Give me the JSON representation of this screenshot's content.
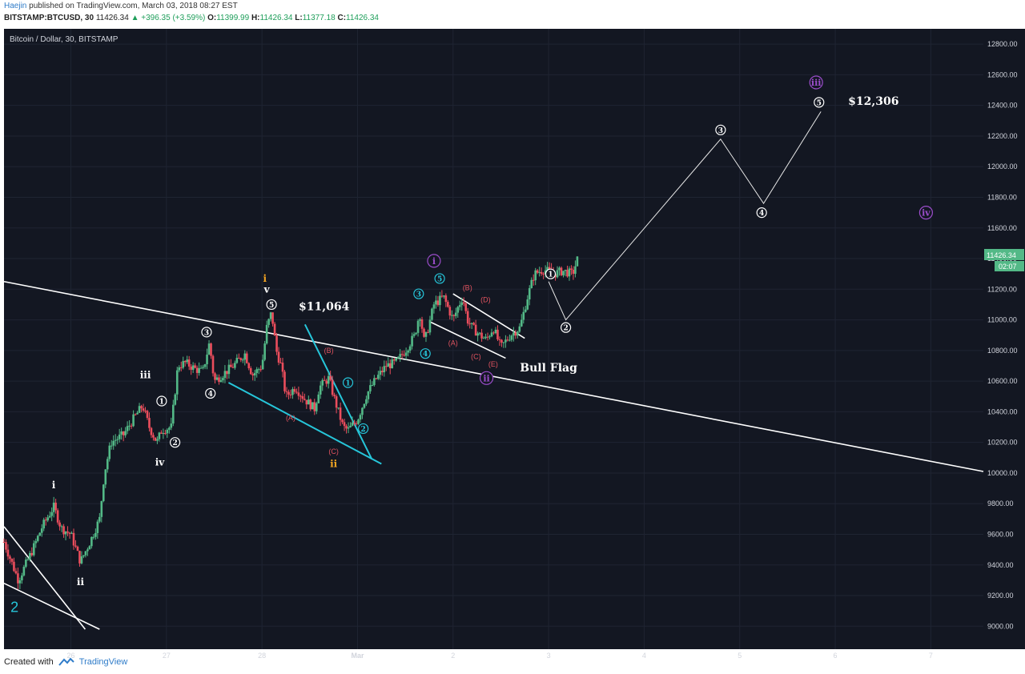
{
  "header": {
    "author": "Haejin",
    "published": "published on TradingView.com, March 03, 2018 08:27 EST",
    "symbol": "BITSTAMP:BTCUSD, 30",
    "last": "11426.34",
    "change": "▲ +396.35 (+3.59%)",
    "o_label": "O:",
    "o": "11399.99",
    "h_label": "H:",
    "h": "11426.34",
    "l_label": "L:",
    "l": "11377.18",
    "c_label": "C:",
    "c": "11426.34"
  },
  "footer": {
    "created_with": "Created with",
    "brand": "TradingView"
  },
  "colors": {
    "background": "#131722",
    "up": "#53b987",
    "down": "#eb4d5c",
    "cyan": "#26c6da",
    "purple": "#9c4dcc",
    "orange": "#f5a623",
    "white": "#ffffff"
  },
  "chart_data": {
    "type": "candlestick",
    "title": "Bitcoin / Dollar, 30, BITSTAMP",
    "ylim": [
      8850,
      12900
    ],
    "y_ticks": [
      "9000.00",
      "9200.00",
      "9400.00",
      "9600.00",
      "9800.00",
      "10000.00",
      "10200.00",
      "10400.00",
      "10600.00",
      "10800.00",
      "11000.00",
      "11200.00",
      "11400.00",
      "11600.00",
      "11800.00",
      "12000.00",
      "12200.00",
      "12400.00",
      "12600.00",
      "12800.00"
    ],
    "xlim": [
      25.3,
      35.55
    ],
    "x_ticks": [
      {
        "x": 26,
        "label": "26"
      },
      {
        "x": 27,
        "label": "27"
      },
      {
        "x": 28,
        "label": "28"
      },
      {
        "x": 29,
        "label": "Mar"
      },
      {
        "x": 30,
        "label": "2"
      },
      {
        "x": 31,
        "label": "3"
      },
      {
        "x": 32,
        "label": "4"
      },
      {
        "x": 33,
        "label": "5"
      },
      {
        "x": 34,
        "label": "6"
      },
      {
        "x": 35,
        "label": "7"
      }
    ],
    "last_price_label": "11426.34",
    "countdown_label": "02:07",
    "price_path": [
      [
        25.3,
        9550
      ],
      [
        25.45,
        9300
      ],
      [
        25.6,
        9500
      ],
      [
        25.7,
        9650
      ],
      [
        25.82,
        9780
      ],
      [
        25.9,
        9640
      ],
      [
        26.0,
        9600
      ],
      [
        26.1,
        9420
      ],
      [
        26.2,
        9550
      ],
      [
        26.3,
        9700
      ],
      [
        26.35,
        10000
      ],
      [
        26.42,
        10200
      ],
      [
        26.55,
        10250
      ],
      [
        26.65,
        10350
      ],
      [
        26.75,
        10440
      ],
      [
        26.82,
        10300
      ],
      [
        26.9,
        10200
      ],
      [
        26.95,
        10280
      ],
      [
        27.05,
        10300
      ],
      [
        27.12,
        10700
      ],
      [
        27.2,
        10720
      ],
      [
        27.3,
        10680
      ],
      [
        27.38,
        10660
      ],
      [
        27.45,
        10850
      ],
      [
        27.5,
        10600
      ],
      [
        27.6,
        10650
      ],
      [
        27.7,
        10700
      ],
      [
        27.82,
        10780
      ],
      [
        27.9,
        10640
      ],
      [
        28.0,
        10700
      ],
      [
        28.05,
        10950
      ],
      [
        28.1,
        11050
      ],
      [
        28.15,
        10800
      ],
      [
        28.2,
        10700
      ],
      [
        28.25,
        10500
      ],
      [
        28.35,
        10560
      ],
      [
        28.45,
        10480
      ],
      [
        28.55,
        10420
      ],
      [
        28.6,
        10560
      ],
      [
        28.7,
        10620
      ],
      [
        28.75,
        10500
      ],
      [
        28.8,
        10400
      ],
      [
        28.85,
        10300
      ],
      [
        28.9,
        10280
      ],
      [
        29.0,
        10350
      ],
      [
        29.1,
        10520
      ],
      [
        29.2,
        10620
      ],
      [
        29.3,
        10700
      ],
      [
        29.4,
        10720
      ],
      [
        29.5,
        10800
      ],
      [
        29.6,
        10900
      ],
      [
        29.65,
        11050
      ],
      [
        29.7,
        10850
      ],
      [
        29.8,
        11100
      ],
      [
        29.9,
        11150
      ],
      [
        30.0,
        11000
      ],
      [
        30.05,
        11080
      ],
      [
        30.1,
        11150
      ],
      [
        30.15,
        11000
      ],
      [
        30.2,
        10950
      ],
      [
        30.28,
        10900
      ],
      [
        30.35,
        10870
      ],
      [
        30.42,
        10950
      ],
      [
        30.5,
        10820
      ],
      [
        30.6,
        10900
      ],
      [
        30.7,
        10950
      ],
      [
        30.78,
        11150
      ],
      [
        30.85,
        11300
      ],
      [
        30.95,
        11330
      ],
      [
        31.05,
        11300
      ],
      [
        31.15,
        11320
      ],
      [
        31.25,
        11300
      ],
      [
        31.32,
        11430
      ]
    ],
    "projection": [
      [
        31.0,
        11250
      ],
      [
        31.18,
        11000
      ],
      [
        32.8,
        12180
      ],
      [
        33.25,
        11760
      ],
      [
        33.85,
        12360
      ]
    ],
    "trendlines": [
      {
        "color": "white",
        "p1": [
          25.3,
          11250
        ],
        "p2": [
          35.55,
          10010
        ]
      },
      {
        "color": "white",
        "p1": [
          25.3,
          9650
        ],
        "p2": [
          26.15,
          8980
        ]
      },
      {
        "color": "white",
        "p1": [
          25.3,
          9280
        ],
        "p2": [
          26.3,
          8980
        ]
      },
      {
        "color": "cyan",
        "p1": [
          27.65,
          10590
        ],
        "p2": [
          29.25,
          10060
        ]
      },
      {
        "color": "cyan",
        "p1": [
          28.45,
          10970
        ],
        "p2": [
          29.15,
          10090
        ]
      },
      {
        "color": "white",
        "p1": [
          29.75,
          10990
        ],
        "p2": [
          30.55,
          10750
        ]
      },
      {
        "color": "white",
        "p1": [
          30.0,
          11170
        ],
        "p2": [
          30.75,
          10880
        ]
      }
    ],
    "annotations": [
      {
        "text": "2",
        "x": 25.41,
        "y": 9130,
        "color": "cyan",
        "style": "big"
      },
      {
        "text": "i",
        "x": 25.82,
        "y": 9920,
        "color": "white",
        "style": "bold"
      },
      {
        "text": "ii",
        "x": 26.1,
        "y": 9290,
        "color": "white",
        "style": "bold"
      },
      {
        "text": "iii",
        "x": 26.78,
        "y": 10640,
        "color": "white",
        "style": "bold"
      },
      {
        "text": "iv",
        "x": 26.93,
        "y": 10070,
        "color": "white",
        "style": "bold"
      },
      {
        "text": "1",
        "x": 26.95,
        "y": 10470,
        "color": "white",
        "style": "circle"
      },
      {
        "text": "2",
        "x": 27.09,
        "y": 10200,
        "color": "white",
        "style": "circle"
      },
      {
        "text": "3",
        "x": 27.42,
        "y": 10920,
        "color": "white",
        "style": "circle"
      },
      {
        "text": "4",
        "x": 27.46,
        "y": 10520,
        "color": "white",
        "style": "circle"
      },
      {
        "text": "i",
        "x": 28.03,
        "y": 11270,
        "color": "orange",
        "style": "bold"
      },
      {
        "text": "v",
        "x": 28.05,
        "y": 11200,
        "color": "white",
        "style": "bold"
      },
      {
        "text": "5",
        "x": 28.1,
        "y": 11100,
        "color": "white",
        "style": "circle"
      },
      {
        "text": "$11,064",
        "x": 28.65,
        "y": 11090,
        "color": "white",
        "style": "price"
      },
      {
        "text": "(B)",
        "x": 28.7,
        "y": 10800,
        "color": "red",
        "style": "small"
      },
      {
        "text": "(A)",
        "x": 28.3,
        "y": 10360,
        "color": "red",
        "style": "small"
      },
      {
        "text": "(C)",
        "x": 28.75,
        "y": 10140,
        "color": "red",
        "style": "small"
      },
      {
        "text": "ii",
        "x": 28.75,
        "y": 10060,
        "color": "orange",
        "style": "bold"
      },
      {
        "text": "1",
        "x": 28.9,
        "y": 10590,
        "color": "cyan",
        "style": "circle"
      },
      {
        "text": "2",
        "x": 29.06,
        "y": 10290,
        "color": "cyan",
        "style": "circle"
      },
      {
        "text": "3",
        "x": 29.64,
        "y": 11170,
        "color": "cyan",
        "style": "circle"
      },
      {
        "text": "4",
        "x": 29.71,
        "y": 10780,
        "color": "cyan",
        "style": "circle"
      },
      {
        "text": "5",
        "x": 29.86,
        "y": 11270,
        "color": "cyan",
        "style": "circle"
      },
      {
        "text": "i",
        "x": 29.8,
        "y": 11385,
        "color": "purple",
        "style": "circlebig"
      },
      {
        "text": "(B)",
        "x": 30.15,
        "y": 11210,
        "color": "red",
        "style": "small"
      },
      {
        "text": "(D)",
        "x": 30.34,
        "y": 11130,
        "color": "red",
        "style": "small"
      },
      {
        "text": "(A)",
        "x": 30.0,
        "y": 10850,
        "color": "red",
        "style": "small"
      },
      {
        "text": "(C)",
        "x": 30.24,
        "y": 10760,
        "color": "red",
        "style": "small"
      },
      {
        "text": "(E)",
        "x": 30.42,
        "y": 10710,
        "color": "red",
        "style": "small"
      },
      {
        "text": "ii",
        "x": 30.35,
        "y": 10620,
        "color": "purple",
        "style": "circlebig"
      },
      {
        "text": "Bull Flag",
        "x": 31.0,
        "y": 10690,
        "color": "white",
        "style": "price"
      },
      {
        "text": "1",
        "x": 31.02,
        "y": 11300,
        "color": "white",
        "style": "circle"
      },
      {
        "text": "2",
        "x": 31.18,
        "y": 10950,
        "color": "white",
        "style": "circle"
      },
      {
        "text": "3",
        "x": 32.8,
        "y": 12240,
        "color": "white",
        "style": "circle"
      },
      {
        "text": "4",
        "x": 33.23,
        "y": 11700,
        "color": "white",
        "style": "circle"
      },
      {
        "text": "5",
        "x": 33.83,
        "y": 12420,
        "color": "white",
        "style": "circle"
      },
      {
        "text": "iii",
        "x": 33.8,
        "y": 12550,
        "color": "purple",
        "style": "circlebig"
      },
      {
        "text": "$12,306",
        "x": 34.4,
        "y": 12430,
        "color": "white",
        "style": "price"
      },
      {
        "text": "iv",
        "x": 34.95,
        "y": 11700,
        "color": "purple",
        "style": "circlebig"
      }
    ]
  }
}
